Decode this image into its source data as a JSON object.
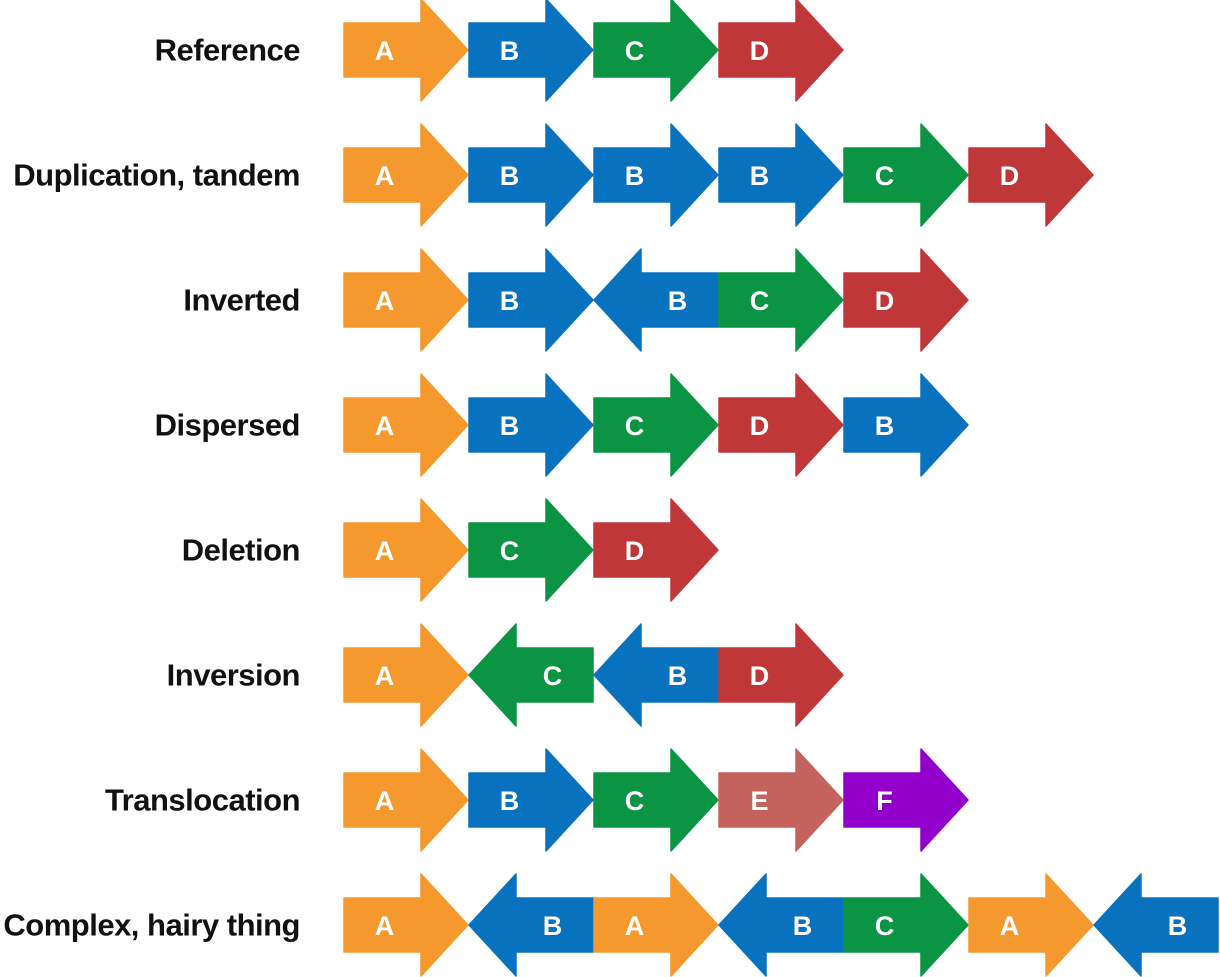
{
  "colors": {
    "A": "#F5992E",
    "B": "#0872BE",
    "C": "#0A9444",
    "D": "#C0373A",
    "E": "#C4635D",
    "F": "#9300CC"
  },
  "rows": [
    {
      "label": "Reference",
      "segments": [
        {
          "letter": "A",
          "dir": "right"
        },
        {
          "letter": "B",
          "dir": "right"
        },
        {
          "letter": "C",
          "dir": "right"
        },
        {
          "letter": "D",
          "dir": "right"
        }
      ]
    },
    {
      "label": "Duplication, tandem",
      "segments": [
        {
          "letter": "A",
          "dir": "right"
        },
        {
          "letter": "B",
          "dir": "right"
        },
        {
          "letter": "B",
          "dir": "right"
        },
        {
          "letter": "B",
          "dir": "right"
        },
        {
          "letter": "C",
          "dir": "right"
        },
        {
          "letter": "D",
          "dir": "right"
        }
      ]
    },
    {
      "label": "Inverted",
      "segments": [
        {
          "letter": "A",
          "dir": "right"
        },
        {
          "letter": "B",
          "dir": "right"
        },
        {
          "letter": "B",
          "dir": "left"
        },
        {
          "letter": "C",
          "dir": "right"
        },
        {
          "letter": "D",
          "dir": "right"
        }
      ]
    },
    {
      "label": "Dispersed",
      "segments": [
        {
          "letter": "A",
          "dir": "right"
        },
        {
          "letter": "B",
          "dir": "right"
        },
        {
          "letter": "C",
          "dir": "right"
        },
        {
          "letter": "D",
          "dir": "right"
        },
        {
          "letter": "B",
          "dir": "right"
        }
      ]
    },
    {
      "label": "Deletion",
      "segments": [
        {
          "letter": "A",
          "dir": "right"
        },
        {
          "letter": "C",
          "dir": "right"
        },
        {
          "letter": "D",
          "dir": "right"
        }
      ]
    },
    {
      "label": "Inversion",
      "segments": [
        {
          "letter": "A",
          "dir": "right"
        },
        {
          "letter": "C",
          "dir": "left"
        },
        {
          "letter": "B",
          "dir": "left"
        },
        {
          "letter": "D",
          "dir": "right"
        }
      ]
    },
    {
      "label": "Translocation",
      "segments": [
        {
          "letter": "A",
          "dir": "right"
        },
        {
          "letter": "B",
          "dir": "right"
        },
        {
          "letter": "C",
          "dir": "right"
        },
        {
          "letter": "E",
          "dir": "right"
        },
        {
          "letter": "F",
          "dir": "right"
        }
      ]
    },
    {
      "label": "Complex, hairy thing",
      "segments": [
        {
          "letter": "A",
          "dir": "right"
        },
        {
          "letter": "B",
          "dir": "left"
        },
        {
          "letter": "A",
          "dir": "right"
        },
        {
          "letter": "B",
          "dir": "left"
        },
        {
          "letter": "C",
          "dir": "right"
        },
        {
          "letter": "A",
          "dir": "right"
        },
        {
          "letter": "B",
          "dir": "left"
        }
      ]
    }
  ]
}
